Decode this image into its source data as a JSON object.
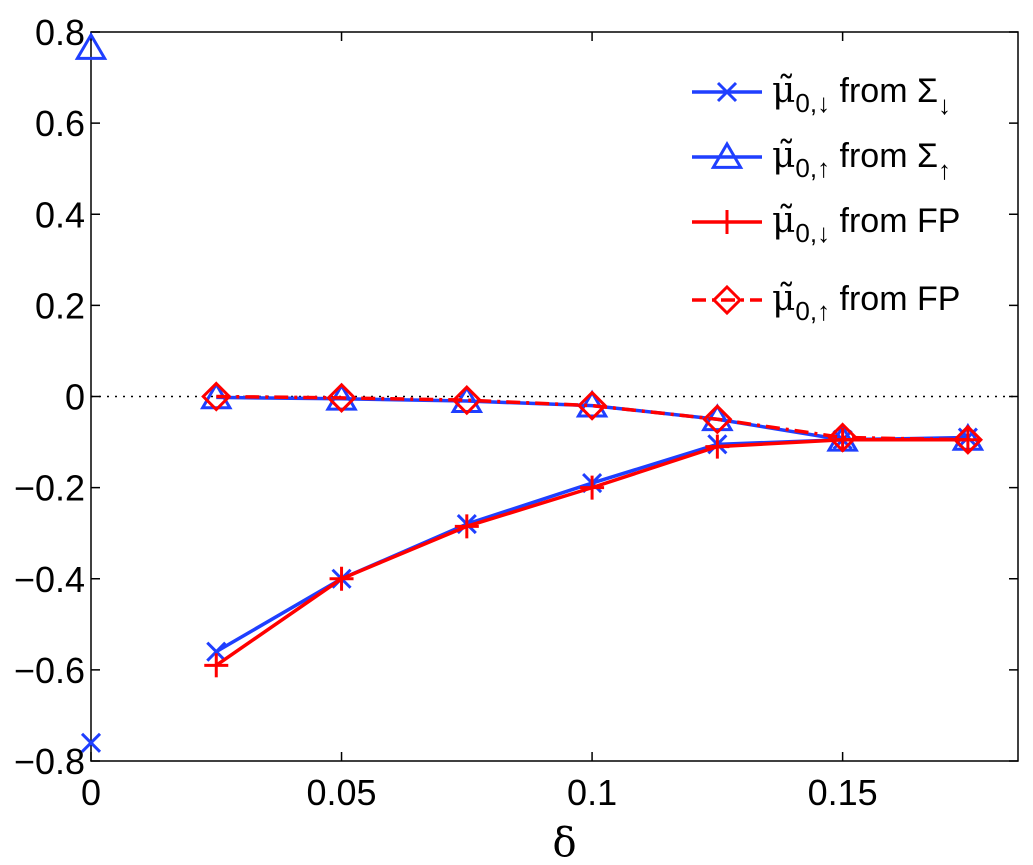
{
  "chart_data": {
    "type": "line",
    "title": "",
    "xlabel": "δ",
    "ylabel": "",
    "xlim": [
      0,
      0.185
    ],
    "ylim": [
      -0.8,
      0.8
    ],
    "xticks": [
      0,
      0.05,
      0.1,
      0.15
    ],
    "xtick_labels": [
      "0",
      "0.05",
      "0.1",
      "0.15"
    ],
    "yticks": [
      -0.8,
      -0.6,
      -0.4,
      -0.2,
      0,
      0.2,
      0.4,
      0.6,
      0.8
    ],
    "ytick_labels": [
      "−0.8",
      "−0.6",
      "−0.4",
      "−0.2",
      "0",
      "0.2",
      "0.4",
      "0.6",
      "0.8"
    ],
    "grid": false,
    "legend_position": "top-right",
    "reference_line": {
      "y": 0,
      "style": "dotted"
    },
    "series": [
      {
        "name": "μ̃0,↓ from Σ↓",
        "legend": {
          "base": "μ̃",
          "sub": "0,↓",
          "mid": " from Σ",
          "sub2": "↓"
        },
        "color": "#1f3fff",
        "marker": "x",
        "dash": "solid",
        "x": [
          0,
          0.025,
          0.05,
          0.075,
          0.1,
          0.125,
          0.15,
          0.175
        ],
        "y": [
          -0.76,
          -0.56,
          -0.4,
          -0.28,
          -0.19,
          -0.105,
          -0.095,
          -0.09
        ],
        "connect_from_index": 1
      },
      {
        "name": "μ̃0,↑ from Σ↑",
        "legend": {
          "base": "μ̃",
          "sub": "0,↑",
          "mid": " from Σ",
          "sub2": "↑"
        },
        "color": "#1f3fff",
        "marker": "triangle",
        "dash": "solid",
        "x": [
          0,
          0.025,
          0.05,
          0.075,
          0.1,
          0.125,
          0.15,
          0.175
        ],
        "y": [
          0.765,
          -0.002,
          -0.005,
          -0.01,
          -0.02,
          -0.05,
          -0.095,
          -0.093
        ],
        "connect_from_index": 1
      },
      {
        "name": "μ̃0,↓ from FP",
        "legend": {
          "base": "μ̃",
          "sub": "0,↓",
          "mid": " from FP",
          "sub2": ""
        },
        "color": "#ff0000",
        "marker": "plus",
        "dash": "solid",
        "x": [
          0.025,
          0.05,
          0.075,
          0.1,
          0.125,
          0.15,
          0.175
        ],
        "y": [
          -0.59,
          -0.4,
          -0.285,
          -0.2,
          -0.11,
          -0.095,
          -0.095
        ],
        "connect_from_index": 0
      },
      {
        "name": "μ̃0,↑ from FP",
        "legend": {
          "base": "μ̃",
          "sub": "0,↑",
          "mid": " from FP",
          "sub2": ""
        },
        "color": "#ff0000",
        "marker": "diamond",
        "dash": "dashdot",
        "x": [
          0.025,
          0.05,
          0.075,
          0.1,
          0.125,
          0.15,
          0.175
        ],
        "y": [
          0.0,
          -0.003,
          -0.008,
          -0.02,
          -0.05,
          -0.09,
          -0.095
        ],
        "connect_from_index": 0
      }
    ]
  }
}
